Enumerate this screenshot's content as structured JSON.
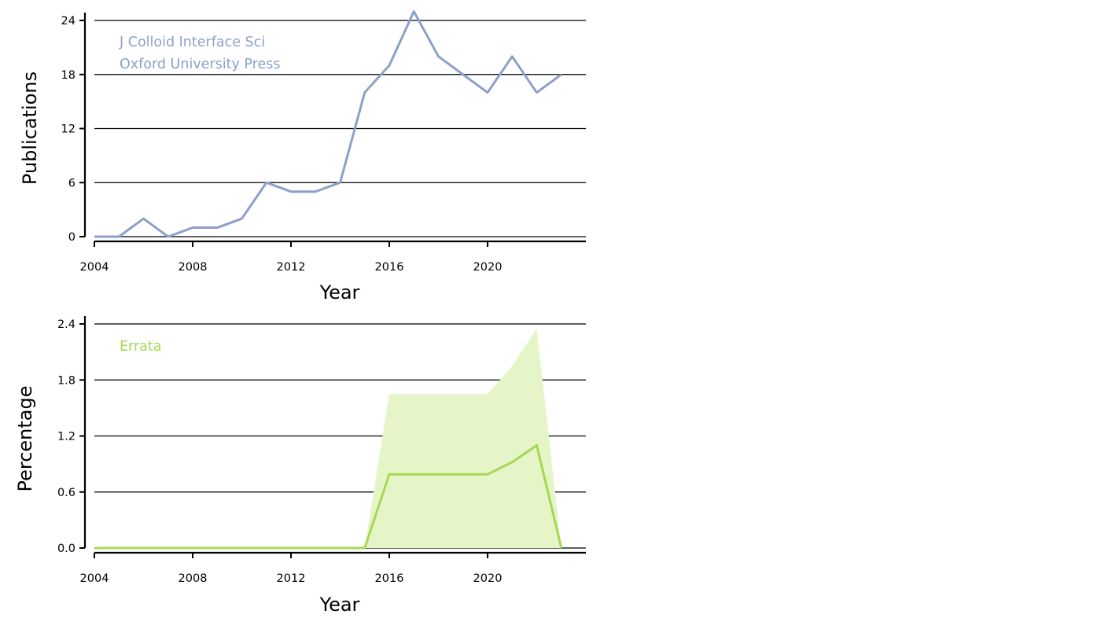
{
  "chart_data": [
    {
      "type": "line",
      "xlabel": "Year",
      "ylabel": "Publications",
      "xlim": [
        2004,
        2024
      ],
      "ylim": [
        0,
        24
      ],
      "xticks": [
        2004,
        2008,
        2012,
        2016,
        2020
      ],
      "yticks": [
        0,
        6,
        12,
        18,
        24
      ],
      "yticklabels": [
        "0",
        "6",
        "12",
        "18",
        "24"
      ],
      "grid": "horizontal",
      "annotations": [
        "J Colloid Interface Sci",
        "Oxford University Press"
      ],
      "series": [
        {
          "color": "#8da0cb",
          "x": [
            2004,
            2005,
            2006,
            2007,
            2008,
            2009,
            2010,
            2011,
            2012,
            2013,
            2014,
            2015,
            2016,
            2017,
            2018,
            2019,
            2020,
            2021,
            2022,
            2023
          ],
          "values": [
            0,
            0,
            2,
            0,
            1,
            1,
            2,
            6,
            5,
            5,
            6,
            16,
            19,
            25,
            20,
            18,
            16,
            20,
            16,
            18
          ]
        }
      ]
    },
    {
      "type": "line",
      "xlabel": "Year",
      "ylabel": "Percentage",
      "xlim": [
        2004,
        2024
      ],
      "ylim": [
        0,
        2.4
      ],
      "xticks": [
        2004,
        2008,
        2012,
        2016,
        2020
      ],
      "yticks": [
        0,
        0.6,
        1.2,
        1.8,
        2.4
      ],
      "yticklabels": [
        "0.0",
        "0.6",
        "1.2",
        "1.8",
        "2.4"
      ],
      "grid": "horizontal",
      "annotations": [
        "Errata"
      ],
      "series": [
        {
          "color": "#a6d854",
          "band_color": "#e5f5c8",
          "x": [
            2004,
            2005,
            2006,
            2007,
            2008,
            2009,
            2010,
            2011,
            2012,
            2013,
            2014,
            2015,
            2016,
            2017,
            2018,
            2019,
            2020,
            2021,
            2022,
            2023
          ],
          "values": [
            0,
            0,
            0,
            0,
            0,
            0,
            0,
            0,
            0,
            0,
            0,
            0,
            0.79,
            0.79,
            0.79,
            0.79,
            0.79,
            0.92,
            1.1,
            0
          ],
          "upper": [
            0,
            0,
            0,
            0,
            0,
            0,
            0,
            0,
            0,
            0,
            0,
            0,
            1.65,
            1.65,
            1.65,
            1.65,
            1.65,
            1.95,
            2.35,
            0
          ],
          "lower": [
            0,
            0,
            0,
            0,
            0,
            0,
            0,
            0,
            0,
            0,
            0,
            0,
            0,
            0,
            0,
            0,
            0,
            0,
            0,
            0
          ]
        }
      ]
    }
  ]
}
